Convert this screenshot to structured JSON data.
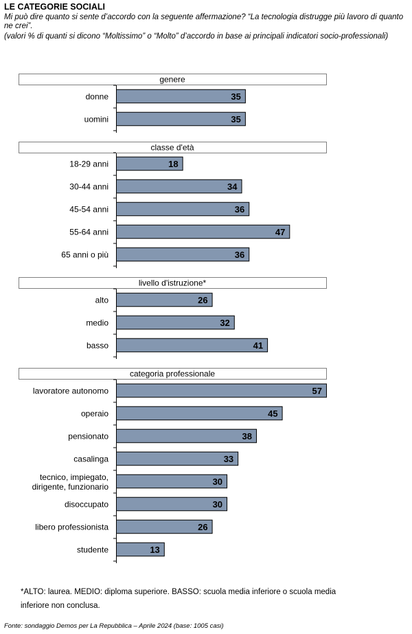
{
  "title": "LE CATEGORIE SOCIALI",
  "question": "Mi può dire quanto si sente d’accordo con la seguente affermazione? “La tecnologia distrugge più lavoro di quanto ne crei”.",
  "subnote": "(valori % di quanti si dicono “Moltissimo” o “Molto” d’accordo in base ai principali indicatori socio-professionali)",
  "footnote": "*ALTO: laurea. MEDIO: diploma superiore. BASSO: scuola media inferiore o scuola media inferiore non conclusa.",
  "source": "Fonte: sondaggio Demos per La Repubblica – Aprile 2024 (base: 1005 casi)",
  "colors": {
    "bar": "#8497B0",
    "bar_stroke": "#000000",
    "group_border": "#808080"
  },
  "chart_data": {
    "type": "bar",
    "orientation": "horizontal",
    "unit": "%",
    "xlim": [
      0,
      57
    ],
    "groups": [
      {
        "label": "genere",
        "categories": [
          "donne",
          "uomini"
        ],
        "values": [
          35,
          35
        ]
      },
      {
        "label": "classe d'età",
        "categories": [
          "18-29 anni",
          "30-44 anni",
          "45-54 anni",
          "55-64 anni",
          "65 anni o più"
        ],
        "values": [
          18,
          34,
          36,
          47,
          36
        ]
      },
      {
        "label": "livello d'istruzione*",
        "categories": [
          "alto",
          "medio",
          "basso"
        ],
        "values": [
          26,
          32,
          41
        ]
      },
      {
        "label": "categoria professionale",
        "categories": [
          "lavoratore autonomo",
          "operaio",
          "pensionato",
          "casalinga",
          "tecnico, impiegato, dirigente, funzionario",
          "disoccupato",
          "libero professionista",
          "studente"
        ],
        "values": [
          57,
          45,
          38,
          33,
          30,
          30,
          26,
          13
        ]
      }
    ]
  }
}
